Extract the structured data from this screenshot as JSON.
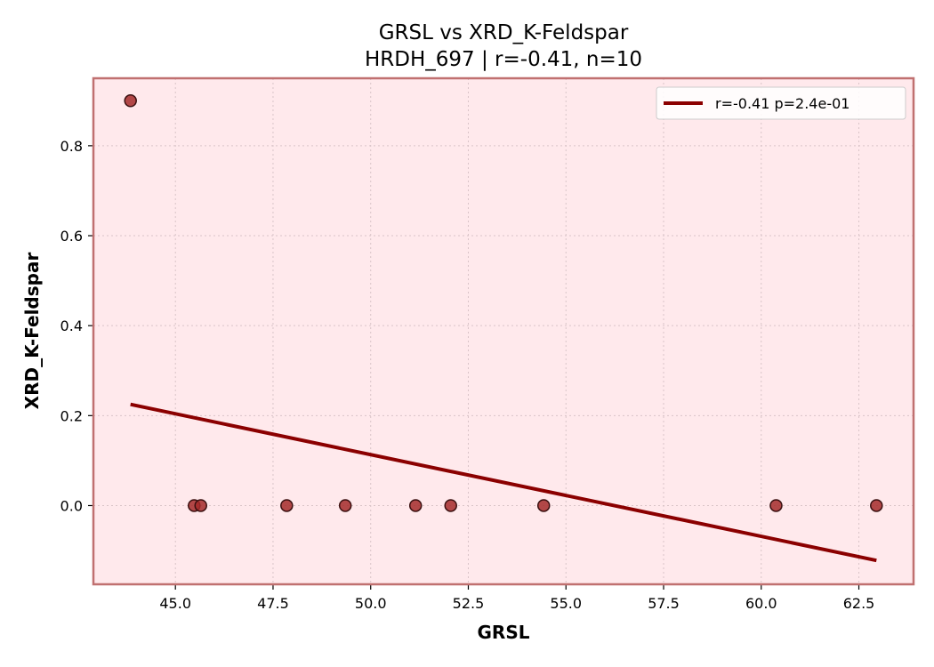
{
  "chart_data": {
    "type": "scatter",
    "title": "GRSL vs XRD_K-Feldspar",
    "subtitle": "HRDH_697 | r=-0.41, n=10",
    "xlabel": "GRSL",
    "ylabel": "XRD_K-Feldspar",
    "xlim": [
      42.9,
      63.9
    ],
    "ylim": [
      -0.175,
      0.95
    ],
    "x_ticks": [
      45.0,
      47.5,
      50.0,
      52.5,
      55.0,
      57.5,
      60.0,
      62.5
    ],
    "x_tick_labels": [
      "45.0",
      "47.5",
      "50.0",
      "52.5",
      "55.0",
      "57.5",
      "60.0",
      "62.5"
    ],
    "y_ticks": [
      0.0,
      0.2,
      0.4,
      0.6,
      0.8
    ],
    "y_tick_labels": [
      "0.0",
      "0.2",
      "0.4",
      "0.6",
      "0.8"
    ],
    "grid": true,
    "legend_position": "top-right",
    "series": [
      {
        "type": "scatter",
        "color": "#a52a2a",
        "points": [
          {
            "x": 43.85,
            "y": 0.9
          },
          {
            "x": 45.48,
            "y": 0.0
          },
          {
            "x": 45.65,
            "y": 0.0
          },
          {
            "x": 47.85,
            "y": 0.0
          },
          {
            "x": 49.35,
            "y": 0.0
          },
          {
            "x": 51.15,
            "y": 0.0
          },
          {
            "x": 52.05,
            "y": 0.0
          },
          {
            "x": 54.43,
            "y": 0.0
          },
          {
            "x": 60.38,
            "y": 0.0
          },
          {
            "x": 62.95,
            "y": 0.0
          }
        ]
      },
      {
        "type": "line",
        "name": "r=-0.41  p=2.4e-01",
        "color": "#8b0000",
        "points": [
          {
            "x": 43.85,
            "y": 0.225
          },
          {
            "x": 62.95,
            "y": -0.122
          }
        ]
      }
    ]
  },
  "colors": {
    "plot_background": "#ffe9ec",
    "plot_border": "#c07070",
    "marker_edge": "#3a1010",
    "grid": "#d9c4c8"
  }
}
